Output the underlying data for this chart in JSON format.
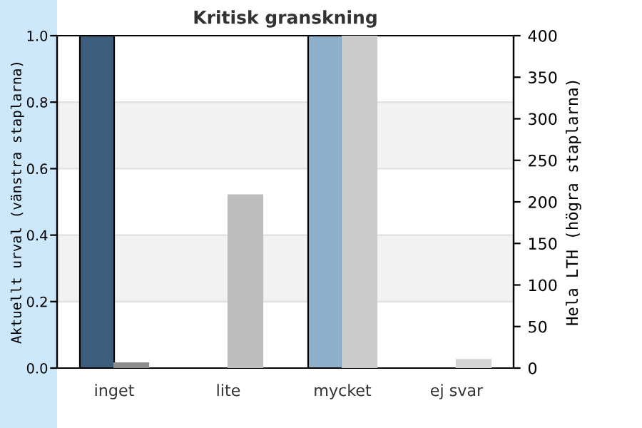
{
  "chart_data": {
    "type": "bar",
    "title": "Kritisk granskning",
    "ylabel": "Aktuellt urval (vänstra staplarna)",
    "y2label": "Hela LTH (högra staplarna)",
    "categories": [
      "inget",
      "lite",
      "mycket",
      "ej svar"
    ],
    "series": [
      {
        "colors": [
          "#3d5f7d",
          "#3d5f7d",
          "#8fb0cb",
          "#8fb0cb"
        ],
        "values": [
          1.0,
          0,
          1.0,
          0
        ]
      },
      {
        "axis": "y2",
        "colors": [
          "#8c8c8c",
          "#bdbdbd",
          "#cbcbcb",
          "#d4d4d4"
        ],
        "values": [
          6,
          208,
          400,
          10
        ]
      }
    ],
    "ylim": [
      0,
      1.0
    ],
    "yticks": [
      {
        "value": 0,
        "label": "0.0"
      },
      0.2,
      0.4,
      0.6,
      0.8,
      {
        "value": 1,
        "label": "1.0"
      }
    ],
    "y2lim": [
      0,
      400
    ],
    "y2ticks": [
      0,
      50,
      100,
      150,
      200,
      250,
      300,
      350,
      400
    ],
    "bands": [
      {
        "axis": "y",
        "from": 0.2,
        "to": 0.4,
        "color": "#f2f2f2"
      },
      {
        "axis": "y",
        "from": 0.6,
        "to": 0.8,
        "color": "#f2f2f2"
      }
    ],
    "grid": "y",
    "legend": false
  }
}
